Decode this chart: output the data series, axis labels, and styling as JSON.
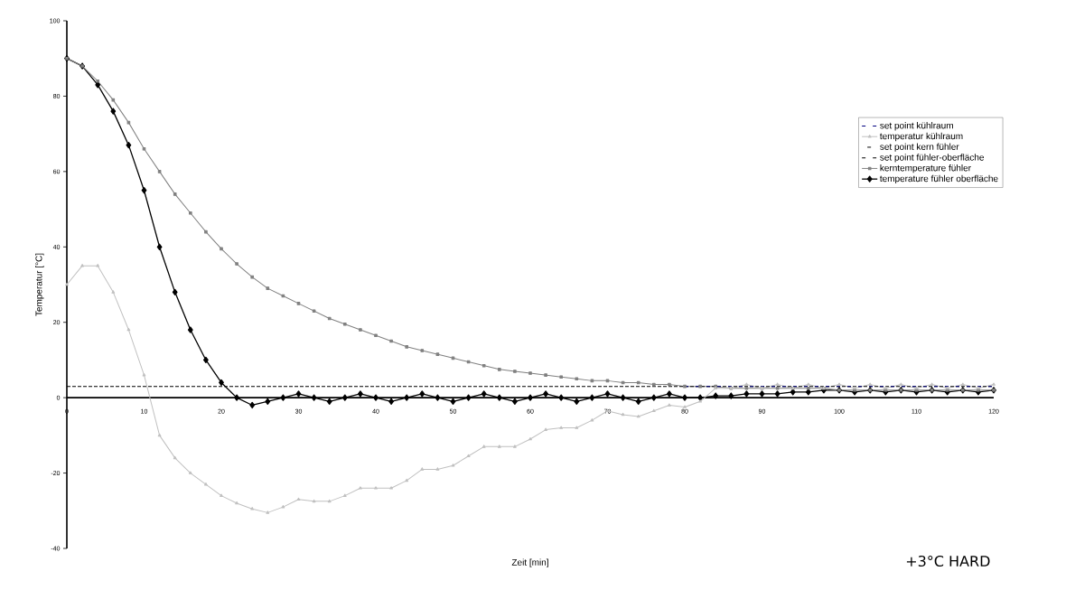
{
  "chart_data": {
    "type": "line",
    "xlabel": "Zeit [min]",
    "ylabel": "Temperatur [°C]",
    "annotations": [
      "+3°C HARD"
    ],
    "x": [
      0,
      2,
      4,
      6,
      8,
      10,
      12,
      14,
      16,
      18,
      20,
      22,
      24,
      26,
      28,
      30,
      32,
      34,
      36,
      38,
      40,
      42,
      44,
      46,
      48,
      50,
      52,
      54,
      56,
      58,
      60,
      62,
      64,
      66,
      68,
      70,
      72,
      74,
      76,
      78,
      80,
      82,
      84,
      86,
      88,
      90,
      92,
      94,
      96,
      98,
      100,
      102,
      104,
      106,
      108,
      110,
      112,
      114,
      116,
      118,
      120
    ],
    "xlim": [
      0,
      120
    ],
    "ylim": [
      -40,
      100
    ],
    "xticks": [
      0,
      10,
      20,
      30,
      40,
      50,
      60,
      70,
      80,
      90,
      100,
      110,
      120
    ],
    "yticks": [
      -40,
      -20,
      0,
      20,
      40,
      60,
      80,
      100
    ],
    "legend": "top right",
    "series": [
      {
        "name": "set point kühlraum",
        "color": "#000080",
        "line_style": "dashed",
        "marker": "none",
        "x": [
          80,
          120
        ],
        "values": [
          3,
          3
        ]
      },
      {
        "name": "temperatur kühlraum",
        "color": "#c0c0c0",
        "line_style": "solid",
        "marker": "triangle",
        "values": [
          30,
          35,
          35,
          28,
          18,
          6,
          -10,
          -16,
          -20,
          -23,
          -26,
          -28,
          -29.5,
          -30.5,
          -29,
          -27,
          -27.5,
          -27.5,
          -26,
          -24,
          -24,
          -24,
          -22,
          -19,
          -19,
          -18,
          -15.5,
          -13,
          -13,
          -13,
          -11,
          -8.5,
          -8,
          -8,
          -6,
          -3.5,
          -4.5,
          -5,
          -3.5,
          -2,
          -2.5,
          -1,
          2.5,
          2.5,
          3.5,
          2.5,
          3.5,
          2.5,
          3.5,
          2.5,
          3.5,
          2.5,
          3.5,
          2.5,
          3.5,
          2.5,
          3.5,
          2.5,
          3.5,
          2.5,
          3.5
        ]
      },
      {
        "name": "set point kern fühler",
        "color": "#000000",
        "line_style": "dashed",
        "marker": "none",
        "x": [
          0,
          120
        ],
        "values": [
          3,
          3
        ]
      },
      {
        "name": "set point fühler-oberfläche",
        "color": "#000000",
        "line_style": "dashed",
        "marker": "none",
        "x": [
          0,
          120
        ],
        "values": [
          3,
          3
        ]
      },
      {
        "name": "kerntemperature fühler",
        "color": "#808080",
        "line_style": "solid",
        "marker": "square",
        "values": [
          90,
          88,
          84,
          79,
          73,
          66,
          60,
          54,
          49,
          44,
          39.5,
          35.5,
          32,
          29,
          27,
          25,
          23,
          21,
          19.5,
          18,
          16.5,
          15,
          13.5,
          12.5,
          11.5,
          10.5,
          9.5,
          8.5,
          7.5,
          7,
          6.5,
          6,
          5.5,
          5,
          4.5,
          4.5,
          4,
          4,
          3.5,
          3.5,
          3,
          3,
          3,
          2.5,
          2.5,
          2.5,
          2.5,
          2.5,
          2.5,
          2.5,
          2,
          2,
          2,
          2,
          2,
          2,
          2,
          2,
          2,
          2,
          2
        ]
      },
      {
        "name": "temperature fühler oberfläche",
        "color": "#000000",
        "line_style": "solid",
        "marker": "diamond",
        "values": [
          90,
          88,
          83,
          76,
          67,
          55,
          40,
          28,
          18,
          10,
          4,
          0,
          -2,
          -1,
          0,
          1,
          0,
          -1,
          0,
          1,
          0,
          -1,
          0,
          1,
          0,
          -1,
          0,
          1,
          0,
          -1,
          0,
          1,
          0,
          -1,
          0,
          1,
          0,
          -1,
          0,
          1,
          0,
          0,
          0.5,
          0.5,
          1,
          1,
          1,
          1.5,
          1.5,
          2,
          2,
          1.5,
          2,
          1.5,
          2,
          1.5,
          2,
          1.5,
          2,
          1.5,
          2
        ]
      }
    ]
  }
}
